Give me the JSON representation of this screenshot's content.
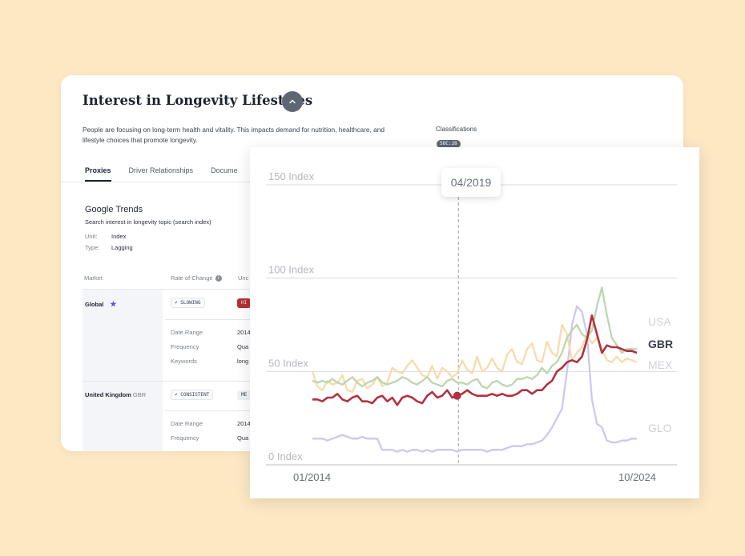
{
  "panel": {
    "title": "Interest in Longevity Lifestyles",
    "description": "People are focusing on long-term health and vitality. This impacts demand for nutrition, healthcare, and lifestyle choices that promote longevity.",
    "classifications_label": "Classifications",
    "classification_badge": "SOC:28",
    "tabs": [
      "Proxies",
      "Driver Relationships",
      "Docume"
    ]
  },
  "proxy": {
    "title": "Google Trends",
    "subtitle": "Search interest in longevity topic (search index)",
    "unit_label": "Unit:",
    "unit_value": "Index",
    "type_label": "Type:",
    "type_value": "Lagging"
  },
  "table": {
    "headers": [
      "Market",
      "Rate of Change",
      "Unc"
    ],
    "rows": [
      {
        "market": "Global",
        "code": "",
        "rate": "SLOWING",
        "rate_icon": "trend-icon",
        "level": "HI",
        "details": [
          {
            "k": "Date Range",
            "v": "2014"
          },
          {
            "k": "Frequency",
            "v": "Qua"
          },
          {
            "k": "Keywords",
            "v": "long"
          }
        ]
      },
      {
        "market": "United Kingdom",
        "code": "GBR",
        "rate": "CONSISTENT",
        "rate_icon": "trend-icon",
        "level": "ME",
        "details": [
          {
            "k": "Date Range",
            "v": "2014"
          },
          {
            "k": "Frequency",
            "v": "Qua"
          }
        ]
      }
    ]
  },
  "chart_data": {
    "type": "line",
    "tooltip": "04/2019",
    "y_ticks": [
      "0 Index",
      "50 Index",
      "100 Index",
      "150 Index"
    ],
    "x_labels": [
      "01/2014",
      "10/2024"
    ],
    "ylim": [
      0,
      150
    ],
    "highlight_x": 0.45,
    "colors": {
      "USA": "#bcd6ae",
      "GBR": "#b3313f",
      "MEX": "#f8dbac",
      "GLO": "#ccc8f2"
    },
    "series": [
      {
        "name": "USA",
        "values": [
          45,
          44,
          45,
          44,
          46,
          44,
          43,
          45,
          47,
          44,
          42,
          44,
          45,
          47,
          44,
          43,
          44,
          45,
          47,
          46,
          44,
          43,
          45,
          47,
          44,
          43,
          42,
          45,
          46,
          44,
          44,
          43,
          45,
          46,
          42,
          41,
          44,
          45,
          43,
          42,
          43,
          46,
          46,
          47,
          46,
          48,
          52,
          49,
          53,
          55,
          60,
          68,
          72,
          75,
          70,
          68,
          72,
          85,
          95,
          80,
          68,
          64,
          60,
          62,
          62,
          62
        ]
      },
      {
        "name": "GBR",
        "values": [
          35,
          35,
          34,
          36,
          36,
          38,
          35,
          34,
          36,
          37,
          34,
          34,
          33,
          36,
          37,
          34,
          36,
          32,
          36,
          37,
          36,
          34,
          33,
          37,
          39,
          36,
          37,
          40,
          36,
          37,
          38,
          40,
          38,
          37,
          37,
          37,
          38,
          37,
          38,
          37,
          37,
          38,
          40,
          40,
          38,
          40,
          40,
          43,
          45,
          50,
          52,
          55,
          56,
          55,
          58,
          67,
          80,
          70,
          60,
          64,
          63,
          63,
          62,
          61,
          61,
          60
        ]
      },
      {
        "name": "MEX",
        "values": [
          50,
          42,
          40,
          45,
          43,
          44,
          48,
          40,
          39,
          45,
          46,
          41,
          43,
          47,
          42,
          44,
          52,
          50,
          49,
          53,
          56,
          52,
          48,
          47,
          53,
          46,
          52,
          50,
          47,
          49,
          56,
          51,
          49,
          58,
          50,
          52,
          57,
          52,
          50,
          59,
          62,
          55,
          54,
          62,
          65,
          56,
          55,
          66,
          60,
          58,
          75,
          70,
          56,
          60,
          63,
          70,
          65,
          68,
          62,
          56,
          55,
          58,
          55,
          57,
          56,
          55
        ]
      },
      {
        "name": "GLO",
        "values": [
          14,
          14,
          14,
          13,
          14,
          15,
          16,
          15,
          14,
          14,
          15,
          14,
          14,
          14,
          8,
          8,
          8,
          7,
          8,
          7,
          8,
          8,
          7,
          8,
          7,
          8,
          8,
          8,
          8,
          7,
          8,
          8,
          8,
          8,
          8,
          7,
          8,
          8,
          8,
          9,
          10,
          10,
          10,
          11,
          11,
          12,
          13,
          16,
          20,
          25,
          30,
          50,
          75,
          85,
          82,
          70,
          35,
          22,
          20,
          13,
          12,
          12,
          13,
          13,
          14,
          14
        ]
      }
    ]
  }
}
